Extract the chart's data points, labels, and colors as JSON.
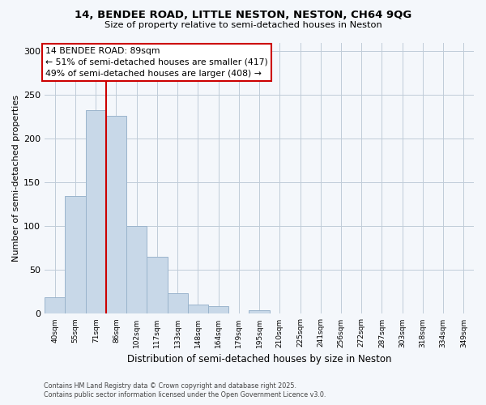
{
  "title": "14, BENDEE ROAD, LITTLE NESTON, NESTON, CH64 9QG",
  "subtitle": "Size of property relative to semi-detached houses in Neston",
  "xlabel": "Distribution of semi-detached houses by size in Neston",
  "ylabel": "Number of semi-detached properties",
  "bar_labels": [
    "40sqm",
    "55sqm",
    "71sqm",
    "86sqm",
    "102sqm",
    "117sqm",
    "133sqm",
    "148sqm",
    "164sqm",
    "179sqm",
    "195sqm",
    "210sqm",
    "225sqm",
    "241sqm",
    "256sqm",
    "272sqm",
    "287sqm",
    "303sqm",
    "318sqm",
    "334sqm",
    "349sqm"
  ],
  "bar_values": [
    19,
    135,
    233,
    226,
    100,
    65,
    24,
    11,
    9,
    0,
    4,
    0,
    0,
    0,
    0,
    0,
    0,
    0,
    0,
    0,
    0
  ],
  "bar_color": "#c8d8e8",
  "bar_edge_color": "#9ab4cc",
  "vline_x": 2.5,
  "vline_color": "#cc0000",
  "annotation_title": "14 BENDEE ROAD: 89sqm",
  "annotation_line1": "← 51% of semi-detached houses are smaller (417)",
  "annotation_line2": "49% of semi-detached houses are larger (408) →",
  "annotation_box_color": "#ffffff",
  "annotation_box_edge": "#cc0000",
  "ylim": [
    0,
    310
  ],
  "yticks": [
    0,
    50,
    100,
    150,
    200,
    250,
    300
  ],
  "footnote1": "Contains HM Land Registry data © Crown copyright and database right 2025.",
  "footnote2": "Contains public sector information licensed under the Open Government Licence v3.0.",
  "bg_color": "#f4f7fb"
}
